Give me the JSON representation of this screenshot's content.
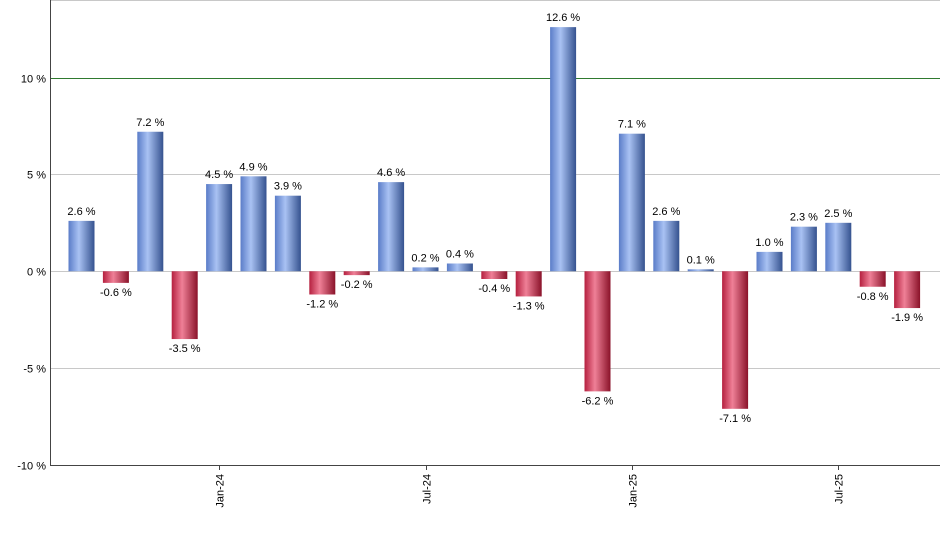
{
  "chart_data": {
    "type": "bar",
    "y_tick_suffix": " %",
    "ylim": [
      -10,
      14
    ],
    "y_ticks": [
      -10,
      -5,
      0,
      5,
      10
    ],
    "y_tick_labels": [
      "-10 %",
      "-5 %",
      "0 %",
      "5 %",
      "10 %"
    ],
    "grid": true,
    "reference_line": {
      "value": 10,
      "color": "#2f7a2f"
    },
    "x_ticks": [
      {
        "label": "Jan-24",
        "index": 4
      },
      {
        "label": "Jul-24",
        "index": 10
      },
      {
        "label": "Jan-25",
        "index": 16
      },
      {
        "label": "Jul-25",
        "index": 22
      }
    ],
    "values": [
      2.6,
      -0.6,
      7.2,
      -3.5,
      4.5,
      4.9,
      3.9,
      -1.2,
      -0.2,
      4.6,
      0.2,
      0.4,
      -0.4,
      -1.3,
      12.6,
      -6.2,
      7.1,
      2.6,
      0.1,
      -7.1,
      1.0,
      2.3,
      2.5,
      -0.8,
      -1.9
    ],
    "data_labels": [
      "2.6 %",
      "-0.6 %",
      "7.2 %",
      "-3.5 %",
      "4.5 %",
      "4.9 %",
      "3.9 %",
      "-1.2 %",
      "-0.2 %",
      "4.6 %",
      "0.2 %",
      "0.4 %",
      "-0.4 %",
      "-1.3 %",
      "12.6 %",
      "-6.2 %",
      "7.1 %",
      "2.6 %",
      "0.1 %",
      "-7.1 %",
      "1.0 %",
      "2.3 %",
      "2.5 %",
      "-0.8 %",
      "-1.9 %"
    ],
    "colors": {
      "positive": "#7f9fe0",
      "negative": "#c8344f",
      "axis": "#444444",
      "grid": "#c8c8c8"
    }
  }
}
